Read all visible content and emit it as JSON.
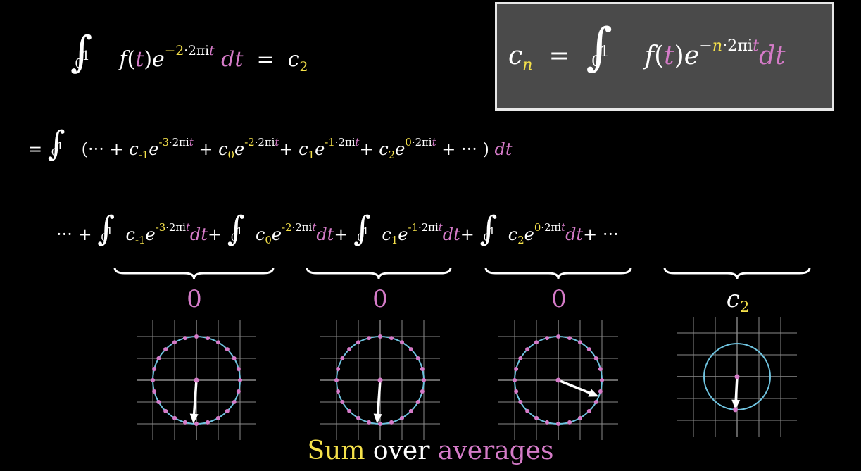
{
  "top_formula": {
    "integrand": "f(t)",
    "f": "f",
    "t": "t",
    "exp_coef": "−2",
    "exp_rest": "·2πi",
    "exp_t": "t",
    "dt": "dt",
    "equals": "=",
    "c": "c",
    "c_sub": "2",
    "upper": "1",
    "lower": "0"
  },
  "box_formula": {
    "c": "c",
    "c_sub": "n",
    "equals": "=",
    "upper": "1",
    "lower": "0",
    "f": "f",
    "t": "t",
    "exp_sign": "−",
    "exp_n": "n",
    "exp_rest": "·2πi",
    "exp_t": "t",
    "dt": "dt"
  },
  "row2": {
    "lead": "=",
    "upper": "1",
    "lower": "0",
    "open": "(",
    "dots_plus": "··· +",
    "terms": [
      {
        "c": "c",
        "sub": "-1",
        "exp_k": "-3",
        "exp_rest": "·2πi",
        "exp_t": "t",
        "plus": "+"
      },
      {
        "c": "c",
        "sub": "0",
        "exp_k": "-2",
        "exp_rest": "·2πi",
        "exp_t": "t",
        "plus": "+"
      },
      {
        "c": "c",
        "sub": "1",
        "exp_k": "-1",
        "exp_rest": "·2πi",
        "exp_t": "t",
        "plus": "+"
      },
      {
        "c": "c",
        "sub": "2",
        "exp_k": "0",
        "exp_rest": "·2πi",
        "exp_t": "t",
        "plus": "+"
      }
    ],
    "dots_close": "··· )",
    "dt": "dt"
  },
  "row3": {
    "lead": "··· +",
    "upper": "1",
    "lower": "0",
    "terms": [
      {
        "c": "c",
        "sub": "-1",
        "exp_k": "-3",
        "exp_rest": "·2πi",
        "exp_t": "t",
        "dt": "dt",
        "plus": "+"
      },
      {
        "c": "c",
        "sub": "0",
        "exp_k": "-2",
        "exp_rest": "·2πi",
        "exp_t": "t",
        "dt": "dt",
        "plus": "+"
      },
      {
        "c": "c",
        "sub": "1",
        "exp_k": "-1",
        "exp_rest": "·2πi",
        "exp_t": "t",
        "dt": "dt",
        "plus": "+"
      },
      {
        "c": "c",
        "sub": "2",
        "exp_k": "0",
        "exp_rest": "·2πi",
        "exp_t": "t",
        "dt": "dt",
        "plus": "+ ···"
      }
    ]
  },
  "brace_labels": [
    "0",
    "0",
    "0"
  ],
  "brace_label_last": {
    "c": "c",
    "sub": "2"
  },
  "caption": {
    "word1": "Sum",
    "word2": "over",
    "word3": "averages"
  },
  "colors": {
    "yellow": "#f5e14a",
    "pink": "#d57bc8",
    "circle": "#6fc3df",
    "grid": "#8a8a8a",
    "box_bg": "#4a4a4a"
  }
}
